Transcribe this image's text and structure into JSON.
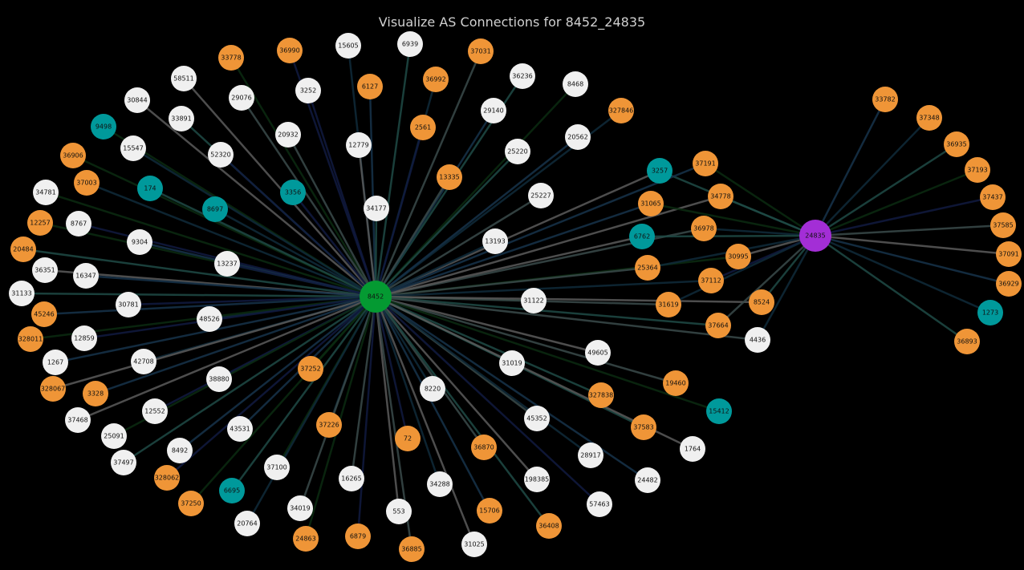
{
  "title": "Visualize AS Connections for 8452_24835",
  "colors": {
    "transit": "#ef9537",
    "stub": "#f0f0f0",
    "teal": "#00999b",
    "source": "#049a32",
    "target": "#a32ed6"
  },
  "nodes": [
    {
      "id": "8452",
      "group": "source"
    },
    {
      "id": "24835",
      "group": "target"
    },
    {
      "id": "15605",
      "group": "stub"
    },
    {
      "id": "6939",
      "group": "stub"
    },
    {
      "id": "33778",
      "group": "transit"
    },
    {
      "id": "36990",
      "group": "transit"
    },
    {
      "id": "37031",
      "group": "transit"
    },
    {
      "id": "58511",
      "group": "stub"
    },
    {
      "id": "6127",
      "group": "transit"
    },
    {
      "id": "36992",
      "group": "transit"
    },
    {
      "id": "36236",
      "group": "stub"
    },
    {
      "id": "8468",
      "group": "stub"
    },
    {
      "id": "3252",
      "group": "stub"
    },
    {
      "id": "29076",
      "group": "stub"
    },
    {
      "id": "30844",
      "group": "stub"
    },
    {
      "id": "29140",
      "group": "stub"
    },
    {
      "id": "327846",
      "group": "transit"
    },
    {
      "id": "33891",
      "group": "stub"
    },
    {
      "id": "9498",
      "group": "teal"
    },
    {
      "id": "2561",
      "group": "transit"
    },
    {
      "id": "20932",
      "group": "stub"
    },
    {
      "id": "12779",
      "group": "stub"
    },
    {
      "id": "20562",
      "group": "stub"
    },
    {
      "id": "15547",
      "group": "stub"
    },
    {
      "id": "25220",
      "group": "stub"
    },
    {
      "id": "36906",
      "group": "transit"
    },
    {
      "id": "52320",
      "group": "stub"
    },
    {
      "id": "13335",
      "group": "transit"
    },
    {
      "id": "3257",
      "group": "teal"
    },
    {
      "id": "37191",
      "group": "transit"
    },
    {
      "id": "37003",
      "group": "transit"
    },
    {
      "id": "174",
      "group": "teal"
    },
    {
      "id": "34781",
      "group": "stub"
    },
    {
      "id": "3356",
      "group": "teal"
    },
    {
      "id": "25227",
      "group": "stub"
    },
    {
      "id": "34778",
      "group": "transit"
    },
    {
      "id": "31065",
      "group": "transit"
    },
    {
      "id": "8697",
      "group": "teal"
    },
    {
      "id": "34177",
      "group": "stub"
    },
    {
      "id": "12257",
      "group": "transit"
    },
    {
      "id": "8767",
      "group": "stub"
    },
    {
      "id": "36978",
      "group": "transit"
    },
    {
      "id": "6762",
      "group": "teal"
    },
    {
      "id": "9304",
      "group": "stub"
    },
    {
      "id": "13193",
      "group": "stub"
    },
    {
      "id": "20484",
      "group": "transit"
    },
    {
      "id": "30995",
      "group": "transit"
    },
    {
      "id": "13237",
      "group": "stub"
    },
    {
      "id": "25364",
      "group": "transit"
    },
    {
      "id": "36351",
      "group": "stub"
    },
    {
      "id": "16347",
      "group": "stub"
    },
    {
      "id": "37112",
      "group": "transit"
    },
    {
      "id": "31133",
      "group": "stub"
    },
    {
      "id": "31122",
      "group": "stub"
    },
    {
      "id": "30781",
      "group": "stub"
    },
    {
      "id": "31619",
      "group": "transit"
    },
    {
      "id": "8524",
      "group": "transit"
    },
    {
      "id": "45246",
      "group": "transit"
    },
    {
      "id": "48526",
      "group": "stub"
    },
    {
      "id": "37664",
      "group": "transit"
    },
    {
      "id": "328011",
      "group": "transit"
    },
    {
      "id": "12859",
      "group": "stub"
    },
    {
      "id": "4436",
      "group": "stub"
    },
    {
      "id": "49605",
      "group": "stub"
    },
    {
      "id": "1267",
      "group": "stub"
    },
    {
      "id": "42708",
      "group": "stub"
    },
    {
      "id": "31019",
      "group": "stub"
    },
    {
      "id": "37252",
      "group": "transit"
    },
    {
      "id": "38880",
      "group": "stub"
    },
    {
      "id": "19460",
      "group": "transit"
    },
    {
      "id": "328067",
      "group": "transit"
    },
    {
      "id": "3328",
      "group": "transit"
    },
    {
      "id": "8220",
      "group": "stub"
    },
    {
      "id": "327838",
      "group": "transit"
    },
    {
      "id": "15412",
      "group": "teal"
    },
    {
      "id": "12552",
      "group": "stub"
    },
    {
      "id": "45352",
      "group": "stub"
    },
    {
      "id": "37468",
      "group": "stub"
    },
    {
      "id": "43531",
      "group": "stub"
    },
    {
      "id": "37226",
      "group": "transit"
    },
    {
      "id": "37583",
      "group": "transit"
    },
    {
      "id": "25091",
      "group": "stub"
    },
    {
      "id": "72",
      "group": "transit"
    },
    {
      "id": "36870",
      "group": "transit"
    },
    {
      "id": "1764",
      "group": "stub"
    },
    {
      "id": "8492",
      "group": "stub"
    },
    {
      "id": "28917",
      "group": "stub"
    },
    {
      "id": "37497",
      "group": "stub"
    },
    {
      "id": "37100",
      "group": "stub"
    },
    {
      "id": "328062",
      "group": "transit"
    },
    {
      "id": "16265",
      "group": "stub"
    },
    {
      "id": "198385",
      "group": "stub"
    },
    {
      "id": "24482",
      "group": "stub"
    },
    {
      "id": "34288",
      "group": "stub"
    },
    {
      "id": "6695",
      "group": "teal"
    },
    {
      "id": "37250",
      "group": "transit"
    },
    {
      "id": "57463",
      "group": "stub"
    },
    {
      "id": "34019",
      "group": "stub"
    },
    {
      "id": "553",
      "group": "stub"
    },
    {
      "id": "15706",
      "group": "transit"
    },
    {
      "id": "20764",
      "group": "stub"
    },
    {
      "id": "36408",
      "group": "transit"
    },
    {
      "id": "24863",
      "group": "transit"
    },
    {
      "id": "6879",
      "group": "transit"
    },
    {
      "id": "36885",
      "group": "transit"
    },
    {
      "id": "31025",
      "group": "stub"
    },
    {
      "id": "33782",
      "group": "transit"
    },
    {
      "id": "37348",
      "group": "transit"
    },
    {
      "id": "36935",
      "group": "transit"
    },
    {
      "id": "37193",
      "group": "transit"
    },
    {
      "id": "37437",
      "group": "transit"
    },
    {
      "id": "37585",
      "group": "transit"
    },
    {
      "id": "37091",
      "group": "transit"
    },
    {
      "id": "36929",
      "group": "transit"
    },
    {
      "id": "1273",
      "group": "teal"
    },
    {
      "id": "36893",
      "group": "transit"
    }
  ],
  "right_cluster": [
    "33782",
    "37348",
    "36935",
    "37193",
    "37437",
    "37585",
    "37091",
    "36929",
    "1273",
    "36893"
  ],
  "both_hubs": [
    "3257",
    "37191",
    "34778",
    "31065",
    "36978",
    "6762",
    "30995",
    "25364",
    "37112",
    "31619",
    "8524",
    "37664",
    "4436"
  ]
}
